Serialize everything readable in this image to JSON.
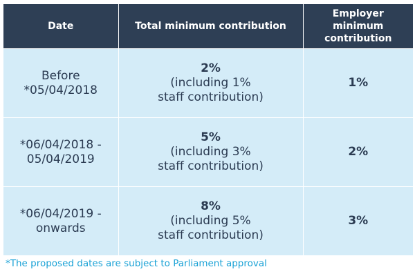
{
  "table": {
    "headers": [
      "Date",
      "Total minimum contribution",
      "Employer minimum contribution"
    ],
    "rows": [
      {
        "date_line1": "Before",
        "date_line2": "*05/04/2018",
        "total_pct": "2%",
        "total_note_line1": "(including 1%",
        "total_note_line2": "staff contribution)",
        "employer_pct": "1%"
      },
      {
        "date_line1": "*06/04/2018 -",
        "date_line2": "05/04/2019",
        "total_pct": "5%",
        "total_note_line1": "(including 3%",
        "total_note_line2": "staff contribution)",
        "employer_pct": "2%"
      },
      {
        "date_line1": "*06/04/2019 -",
        "date_line2": "onwards",
        "total_pct": "8%",
        "total_note_line1": "(including 5%",
        "total_note_line2": "staff contribution)",
        "employer_pct": "3%"
      }
    ]
  },
  "footnote": "*The proposed dates are subject to Parliament approval",
  "colors": {
    "header_bg": "#2e3f55",
    "cell_bg": "#d4ecf8",
    "cell_text": "#2b3b52",
    "footnote_text": "#1aa2d6"
  }
}
